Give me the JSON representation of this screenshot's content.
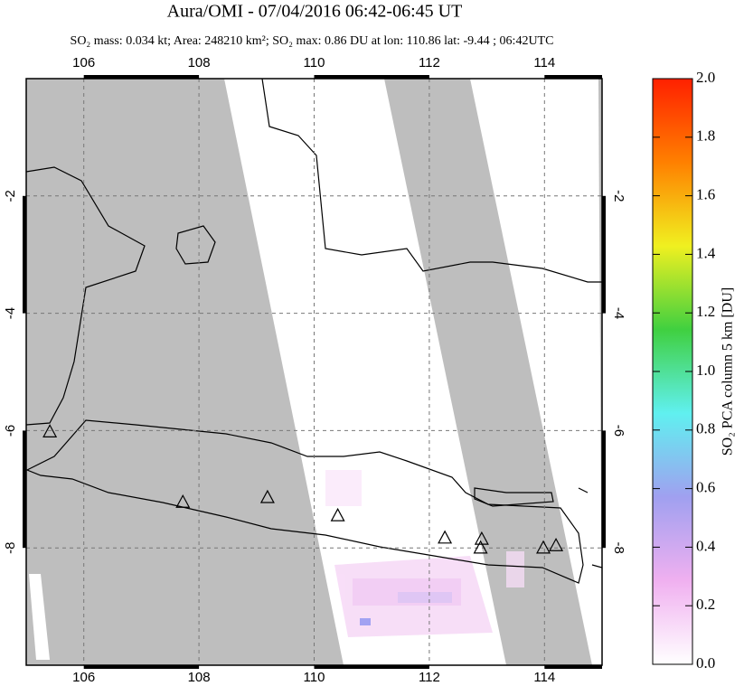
{
  "chart_data": {
    "type": "map",
    "title": "Aura/OMI - 07/04/2016 06:42-06:45 UT",
    "subtitle": "SO₂ mass: 0.034 kt; Area: 248210 km²; SO₂ max: 0.86 DU at lon: 110.86 lat: -9.44 ; 06:42UTC",
    "xlim": [
      105,
      115
    ],
    "ylim": [
      -10,
      0
    ],
    "xticks": [
      106,
      108,
      110,
      112,
      114
    ],
    "yticks": [
      -2,
      -4,
      -6,
      -8
    ],
    "grid": true,
    "volcanoes": {
      "lon": [
        105.41,
        107.72,
        109.19,
        110.41,
        112.27,
        112.91,
        112.89,
        113.98,
        114.2
      ],
      "lat": [
        -6.03,
        -7.23,
        -7.15,
        -7.46,
        -7.84,
        -7.86,
        -8.01,
        -8.01,
        -7.97
      ]
    },
    "colorbar": {
      "label": "SO₂ PCA column 5 km [DU]",
      "lim": [
        0,
        2
      ],
      "ticks": [
        {
          "value": 0,
          "label": "0.0"
        },
        0.2,
        0.4,
        0.6,
        0.8,
        {
          "value": 1,
          "label": "1.0"
        },
        1.2,
        1.4,
        1.6,
        1.8,
        {
          "value": 2,
          "label": "2.0"
        }
      ],
      "colors": [
        "#ffffff",
        "#f0b0f0",
        "#a0a0f0",
        "#60f0f0",
        "#40d040",
        "#f0f020",
        "#ff8000",
        "#ff2000"
      ]
    }
  }
}
